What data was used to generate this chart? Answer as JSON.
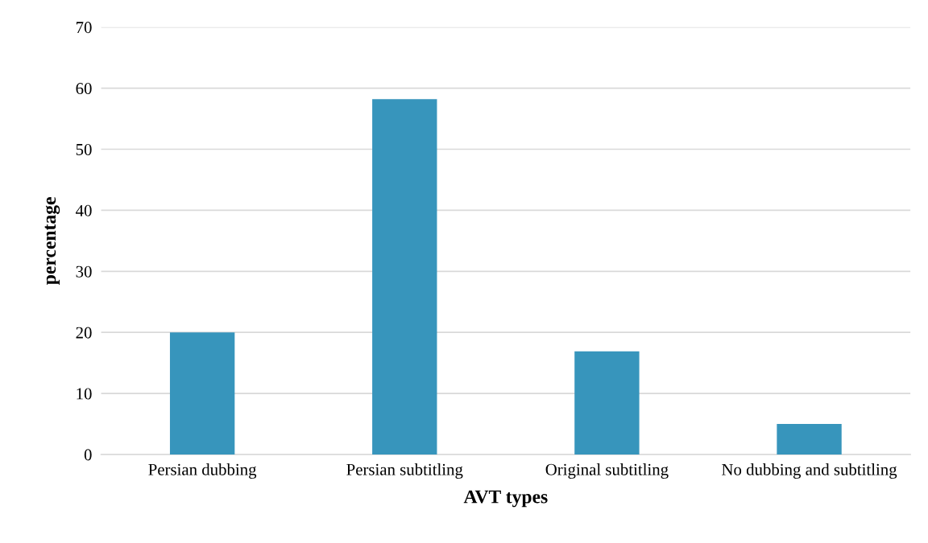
{
  "chart_data": {
    "type": "bar",
    "xlabel": "AVT types",
    "ylabel": "percentage",
    "categories": [
      "Persian dubbing",
      "Persian subtitling",
      "Original subtitling",
      "No dubbing and subtitling"
    ],
    "values": [
      20.0,
      58.2,
      16.9,
      5.0
    ],
    "color": "#3795bc",
    "ylim": [
      0,
      70
    ],
    "yticks": [
      0,
      10,
      20,
      30,
      40,
      50,
      60,
      70
    ],
    "grid": "y"
  }
}
